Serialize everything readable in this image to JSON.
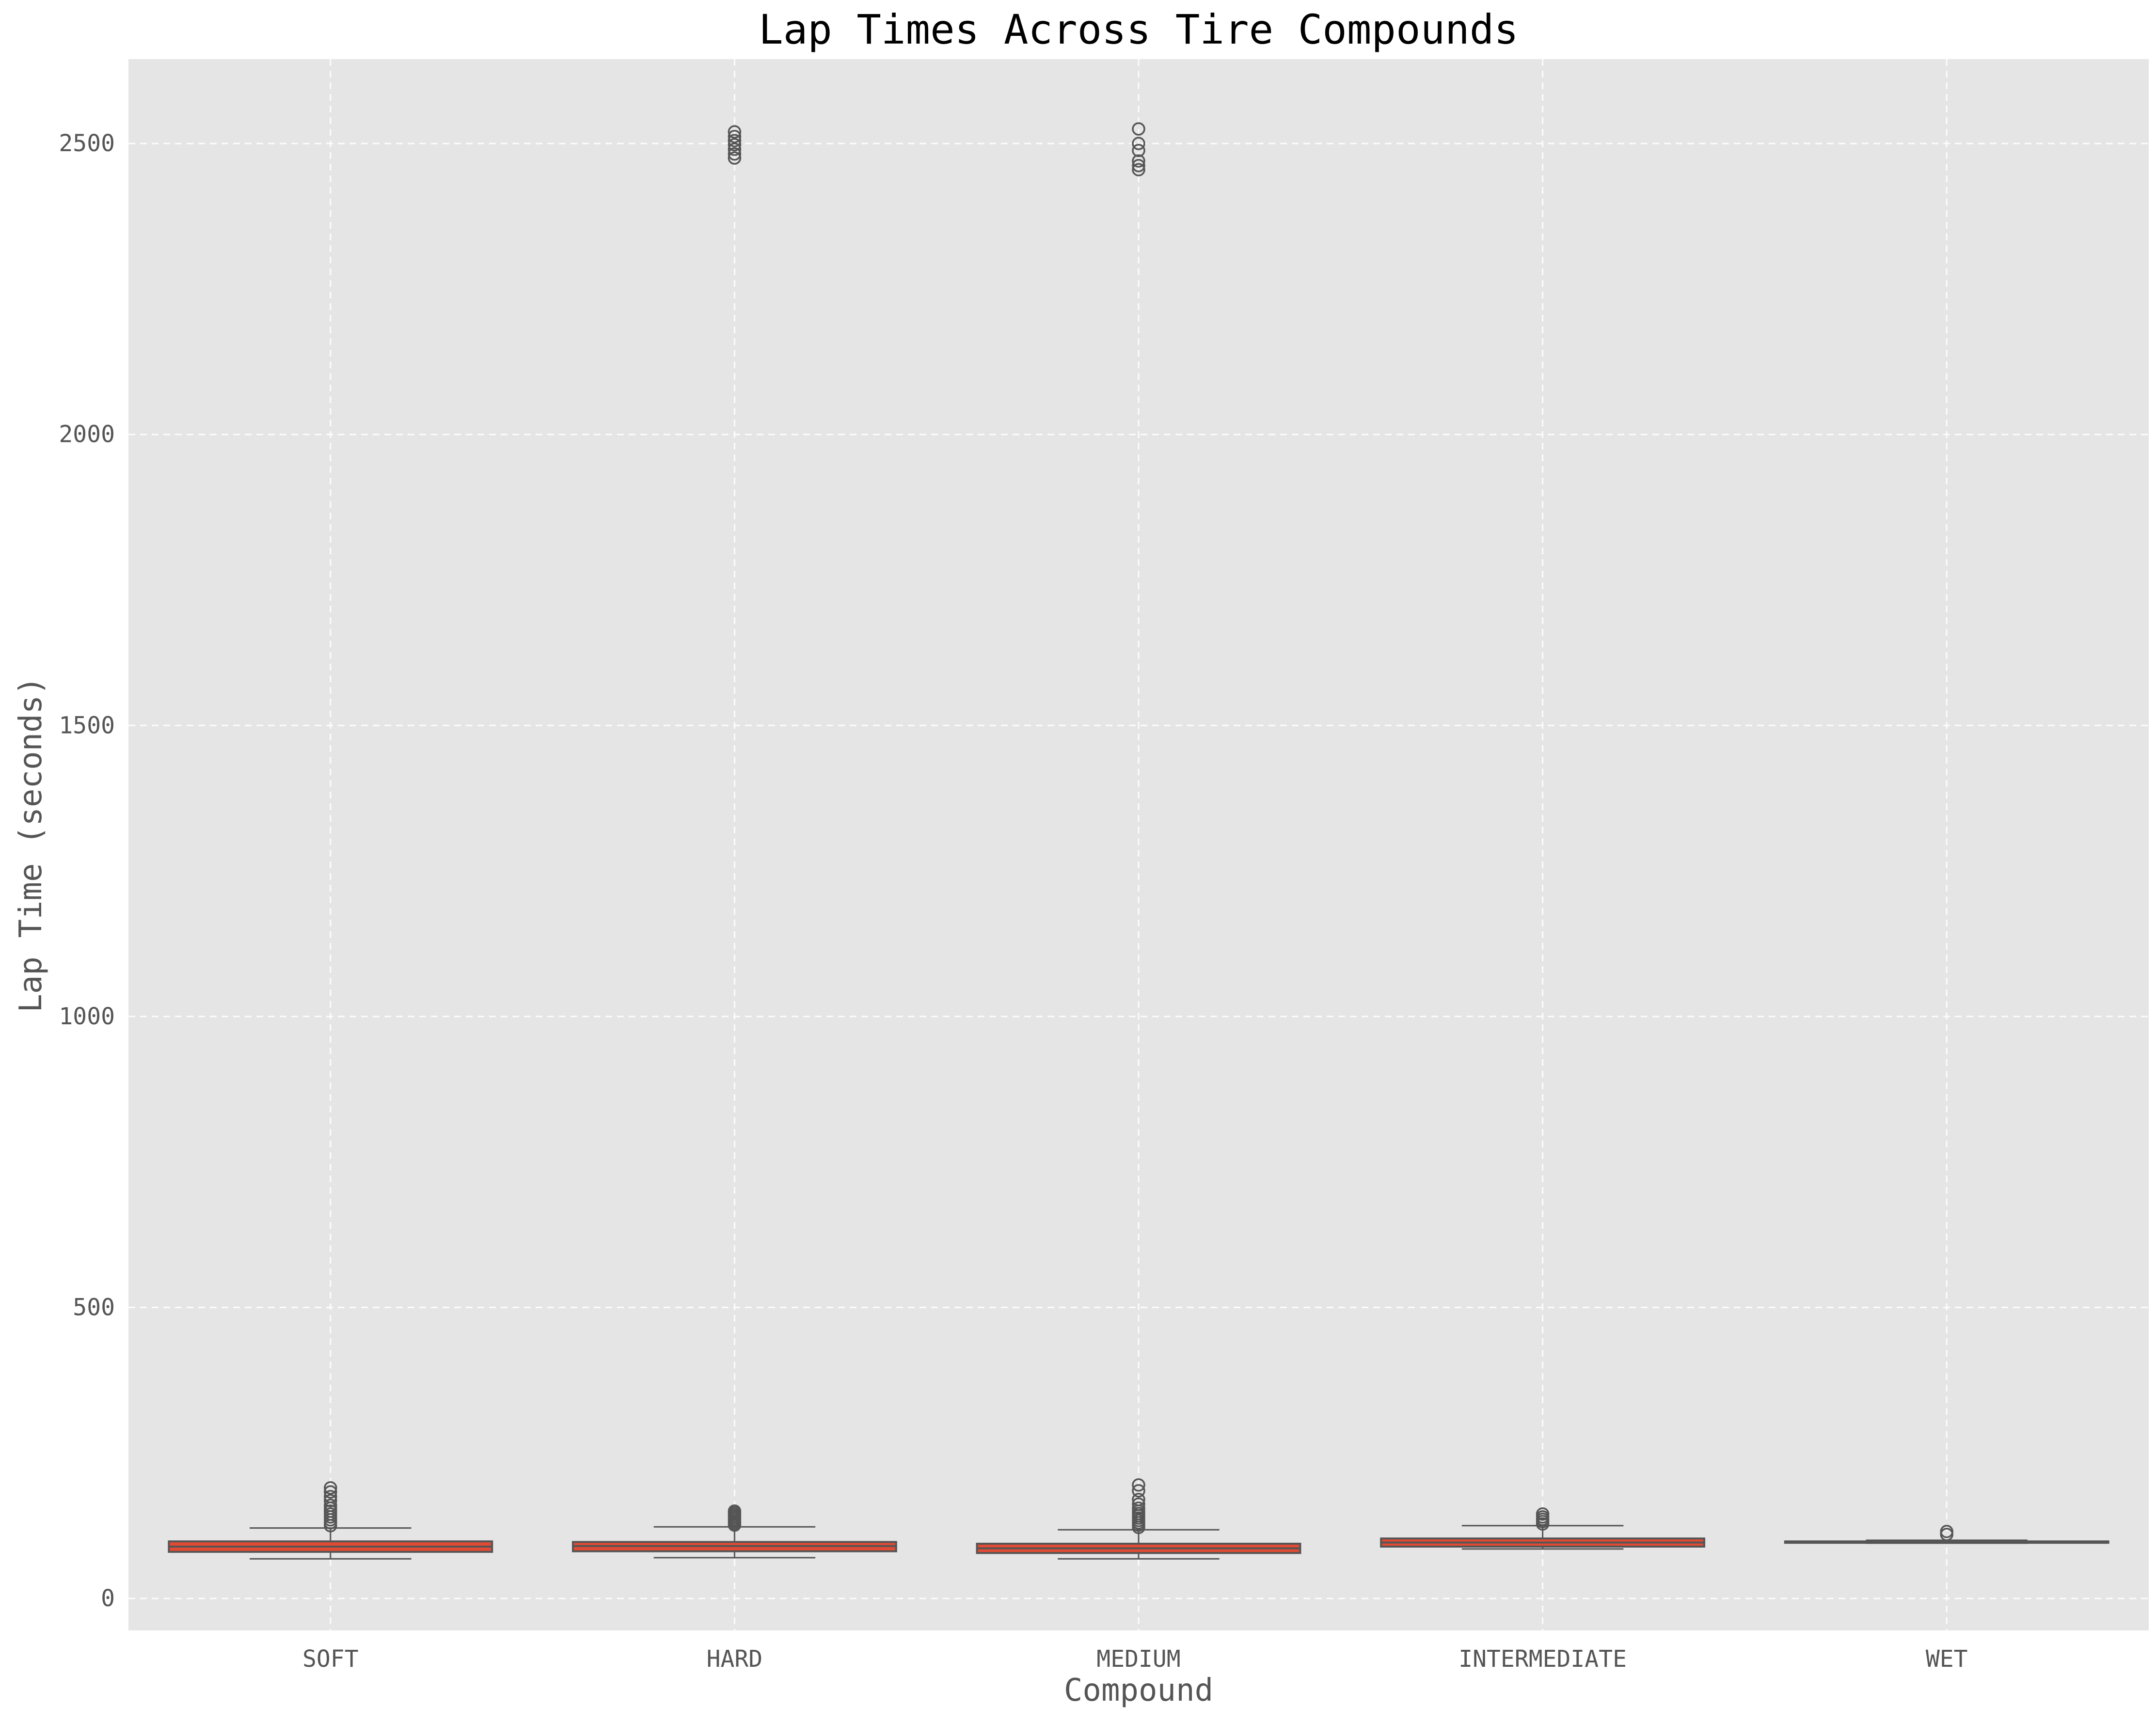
{
  "chart_data": {
    "type": "box",
    "title": "Lap Times Across Tire Compounds",
    "xlabel": "Compound",
    "ylabel": "Lap Time (seconds)",
    "ylim": [
      -55,
      2645
    ],
    "yticks": [
      "0",
      "500",
      "1000",
      "1500",
      "2000",
      "2500"
    ],
    "grid": true,
    "colors": {
      "background": "#e5e5e5",
      "box_fill": "#e24a33",
      "box_edge": "#555555",
      "grid": "#ffffff",
      "outlier": "#555555"
    },
    "categories": [
      "SOFT",
      "HARD",
      "MEDIUM",
      "INTERMEDIATE",
      "WET"
    ],
    "boxes": [
      {
        "name": "SOFT",
        "whisker_low": 68,
        "q1": 80,
        "median": 89,
        "q3": 98,
        "whisker_high": 121,
        "outliers": [
          125,
          130,
          135,
          140,
          145,
          150,
          155,
          160,
          168,
          175,
          183,
          190
        ]
      },
      {
        "name": "HARD",
        "whisker_low": 70,
        "q1": 81,
        "median": 90,
        "q3": 97,
        "whisker_high": 123,
        "outliers": [
          126,
          129,
          132,
          135,
          138,
          141,
          144,
          147,
          150,
          2475,
          2482,
          2490,
          2498,
          2505,
          2512,
          2520
        ]
      },
      {
        "name": "MEDIUM",
        "whisker_low": 68,
        "q1": 78,
        "median": 86,
        "q3": 94,
        "whisker_high": 118,
        "outliers": [
          122,
          126,
          130,
          134,
          138,
          142,
          146,
          150,
          155,
          162,
          170,
          185,
          195,
          2455,
          2462,
          2470,
          2488,
          2500,
          2525
        ]
      },
      {
        "name": "INTERMEDIATE",
        "whisker_low": 85,
        "q1": 89,
        "median": 96,
        "q3": 103,
        "whisker_high": 125,
        "outliers": [
          128,
          132,
          136,
          140,
          145
        ]
      },
      {
        "name": "WET",
        "whisker_low": 95,
        "q1": 96,
        "median": 97,
        "q3": 98,
        "whisker_high": 100,
        "outliers": [
          110,
          115
        ]
      }
    ]
  }
}
